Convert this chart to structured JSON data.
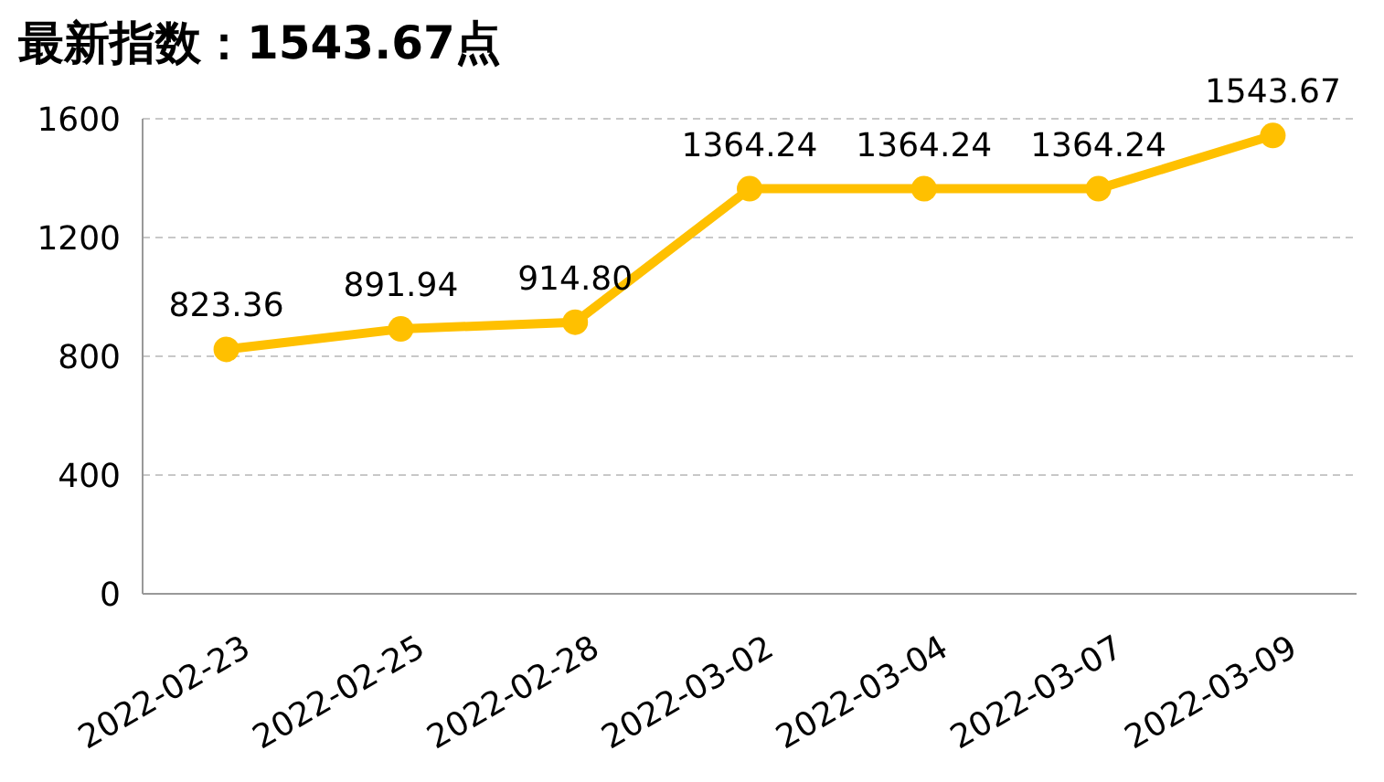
{
  "chart_data": {
    "type": "line",
    "title": "最新指数：1543.67点",
    "categories": [
      "2022-02-23",
      "2022-02-25",
      "2022-02-28",
      "2022-03-02",
      "2022-03-04",
      "2022-03-07",
      "2022-03-09"
    ],
    "series": [
      {
        "color": "#ffc000",
        "values": [
          823.36,
          891.94,
          914.8,
          1364.24,
          1364.24,
          1364.24,
          1543.67
        ],
        "value_labels": [
          "823.36",
          "891.94",
          "914.80",
          "1364.24",
          "1364.24",
          "1364.24",
          "1543.67"
        ]
      }
    ],
    "ylim": [
      0,
      1600
    ],
    "yticks": [
      0,
      400,
      800,
      1200,
      1600
    ],
    "grid": "y",
    "marker": "circle",
    "line_style": "solid"
  }
}
